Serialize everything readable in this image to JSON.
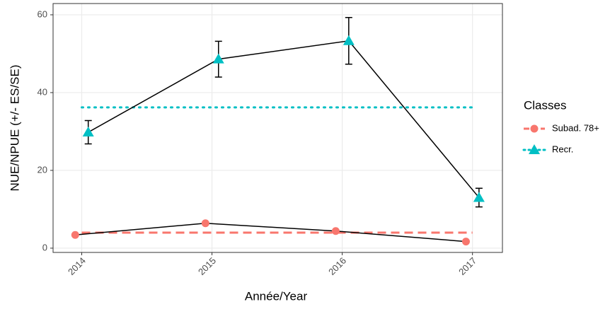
{
  "chart_data": {
    "type": "line",
    "x_label": "Année/Year",
    "y_label": "NUE/NPUE (+/- ES/SE)",
    "legend_title": "Classes",
    "legend_position": "right",
    "xlim": [
      2013.78,
      2017.23
    ],
    "xticks": [
      2014,
      2015,
      2016,
      2017
    ],
    "ylim": [
      -1.1,
      62.9
    ],
    "yticks": [
      0,
      20,
      40,
      60
    ],
    "grid": true,
    "series": [
      {
        "name": "Subad. 78+",
        "color": "#F8766D",
        "marker": "circle",
        "mean_style": "dashed",
        "x": [
          2013.95,
          2014.95,
          2015.95,
          2016.95
        ],
        "values": [
          3.4,
          6.4,
          4.4,
          1.7
        ],
        "mean": 4.0
      },
      {
        "name": "Recr.",
        "color": "#00BFC4",
        "marker": "triangle",
        "mean_style": "dotted",
        "x": [
          2014.05,
          2015.05,
          2016.05,
          2017.05
        ],
        "values": [
          29.8,
          48.6,
          53.3,
          13.0
        ],
        "errors": [
          3.0,
          4.6,
          6.0,
          2.4
        ],
        "mean": 36.2
      }
    ]
  }
}
